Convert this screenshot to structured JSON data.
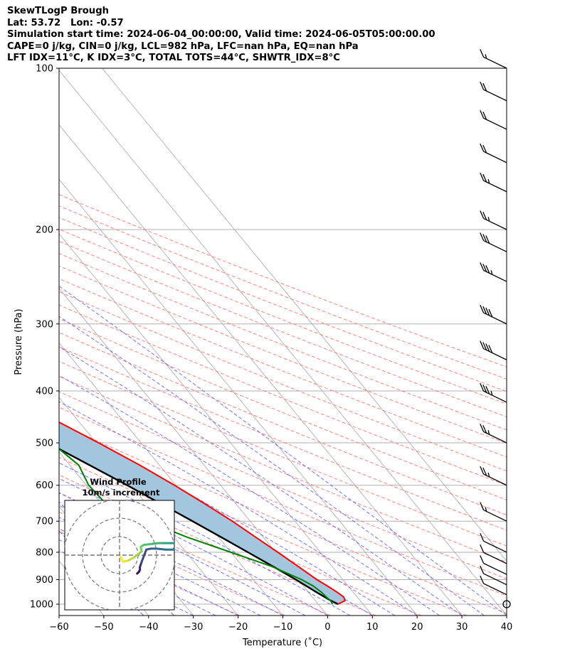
{
  "header": {
    "line1": "SkewTLogP Brough",
    "line2": "Lat: 53.72   Lon: -0.57",
    "line3": "Simulation start time: 2024-06-04_00:00:00, Valid time: 2024-06-05T05:00:00.00",
    "line4": "CAPE=0 j/kg, CIN=0 j/kg, LCL=982 hPa, LFC=nan hPa, EQ=nan hPa",
    "line5": "LFT IDX=11°C, K IDX=3°C, TOTAL TOTS=44°C, SHWTR_IDX=8°C"
  },
  "chart_data": {
    "type": "skewt-logp",
    "title": "SkewTLogP Brough",
    "xlabel": "Temperature (˚C)",
    "ylabel": "Pressure (hPa)",
    "xlim": [
      -60,
      40
    ],
    "ylim": [
      1050,
      100
    ],
    "y_scale": "log",
    "grid": true,
    "x_ticks": [
      -60,
      -50,
      -40,
      -30,
      -20,
      -10,
      0,
      10,
      20,
      30,
      40
    ],
    "y_ticks": [
      1000,
      900,
      800,
      700,
      600,
      500,
      400,
      300,
      200,
      100
    ],
    "colors": {
      "temperature": "#ff0000",
      "dewpoint": "#008000",
      "parcel": "#000000",
      "fill": "#a3c6df",
      "dry_adiabats": "#ff6b6b",
      "moist_adiabats": "#5959ff",
      "mixing_ratio": "#9b4fbf",
      "isotherms": "#b0b0b0"
    },
    "series": [
      {
        "name": "",
        "role": "temperature",
        "pressure": [
          1000,
          985,
          970,
          950,
          925,
          900,
          850,
          800,
          750,
          700,
          650,
          600,
          550,
          500,
          450,
          400,
          350,
          300,
          250,
          200,
          170,
          150,
          130,
          115,
          100
        ],
        "temperature": [
          4.4,
          6.6,
          7.0,
          6.4,
          5.4,
          4.2,
          2.4,
          0.5,
          -1.7,
          -4.0,
          -6.9,
          -10.3,
          -14.4,
          -19.5,
          -25.5,
          -32.4,
          -40.5,
          -49.4,
          -55.5,
          -62.0,
          -66.0,
          -67.5,
          -69.0,
          -70.0,
          -71.5
        ]
      },
      {
        "name": "",
        "role": "dewpoint",
        "pressure": [
          1000,
          985,
          970,
          950,
          925,
          900,
          850,
          800,
          750,
          700,
          650,
          600,
          550,
          500,
          450,
          400,
          350,
          300,
          250,
          200,
          170,
          150,
          130,
          115,
          100
        ],
        "dewpoint": [
          3.2,
          3.4,
          3.1,
          2.9,
          2.2,
          0.8,
          -3.5,
          -10.0,
          -17.0,
          -23.0,
          -29.0,
          -29.5,
          -28.0,
          -30.0,
          -38.0,
          -48.0,
          -54.0,
          -61.5,
          -71.0,
          -81.0,
          -83.0,
          -83.0,
          -83.0,
          -83.0,
          -82.0
        ]
      },
      {
        "name": "",
        "role": "parcel",
        "pressure": [
          1000,
          982,
          950,
          900,
          850,
          800,
          750,
          700,
          650,
          600,
          550,
          500,
          450,
          400,
          350,
          300,
          250,
          200,
          170,
          150,
          130,
          115,
          100
        ],
        "temperature": [
          4.4,
          3.3,
          1.8,
          -0.5,
          -3.2,
          -6.2,
          -9.4,
          -12.9,
          -16.7,
          -20.9,
          -25.6,
          -30.9,
          -37.0,
          -43.9,
          -51.8,
          -60.7,
          -70.3,
          -80.3,
          -86.5,
          -90.5,
          -94.6,
          -97.7,
          -100.5
        ]
      }
    ],
    "wind_barbs": [
      {
        "pressure": 1000,
        "speed_kt": 0
      },
      {
        "pressure": 960,
        "speed_kt": 10
      },
      {
        "pressure": 920,
        "speed_kt": 10
      },
      {
        "pressure": 880,
        "speed_kt": 10
      },
      {
        "pressure": 840,
        "speed_kt": 10
      },
      {
        "pressure": 800,
        "speed_kt": 10
      },
      {
        "pressure": 700,
        "speed_kt": 15
      },
      {
        "pressure": 600,
        "speed_kt": 25
      },
      {
        "pressure": 500,
        "speed_kt": 25
      },
      {
        "pressure": 420,
        "speed_kt": 35
      },
      {
        "pressure": 350,
        "speed_kt": 40
      },
      {
        "pressure": 300,
        "speed_kt": 40
      },
      {
        "pressure": 250,
        "speed_kt": 35
      },
      {
        "pressure": 220,
        "speed_kt": 30
      },
      {
        "pressure": 200,
        "speed_kt": 25
      },
      {
        "pressure": 170,
        "speed_kt": 25
      },
      {
        "pressure": 150,
        "speed_kt": 20
      },
      {
        "pressure": 130,
        "speed_kt": 20
      },
      {
        "pressure": 115,
        "speed_kt": 20
      },
      {
        "pressure": 100,
        "speed_kt": 15
      }
    ],
    "hodograph": {
      "title": "Wind Profile",
      "subtitle": "10m/s increment",
      "rings_ms": [
        10,
        20,
        30
      ],
      "u": [
        9.5,
        10.5,
        11.0,
        11.0,
        11.5,
        12.0,
        14.5,
        17.0,
        20.0,
        25.0,
        29.0,
        31.0,
        30.0,
        27.0,
        24.0,
        21.0,
        17.0,
        13.0,
        11.5,
        12.0,
        10.0,
        7.5,
        4.5,
        2.0,
        0.5
      ],
      "v": [
        -10.0,
        -9.0,
        -8.0,
        -6.5,
        -5.0,
        -3.5,
        3.0,
        3.5,
        3.5,
        3.0,
        3.0,
        5.5,
        6.5,
        6.5,
        6.5,
        6.5,
        6.0,
        5.5,
        4.5,
        2.0,
        0.5,
        -1.5,
        -3.0,
        -3.5,
        -1.0
      ]
    }
  }
}
